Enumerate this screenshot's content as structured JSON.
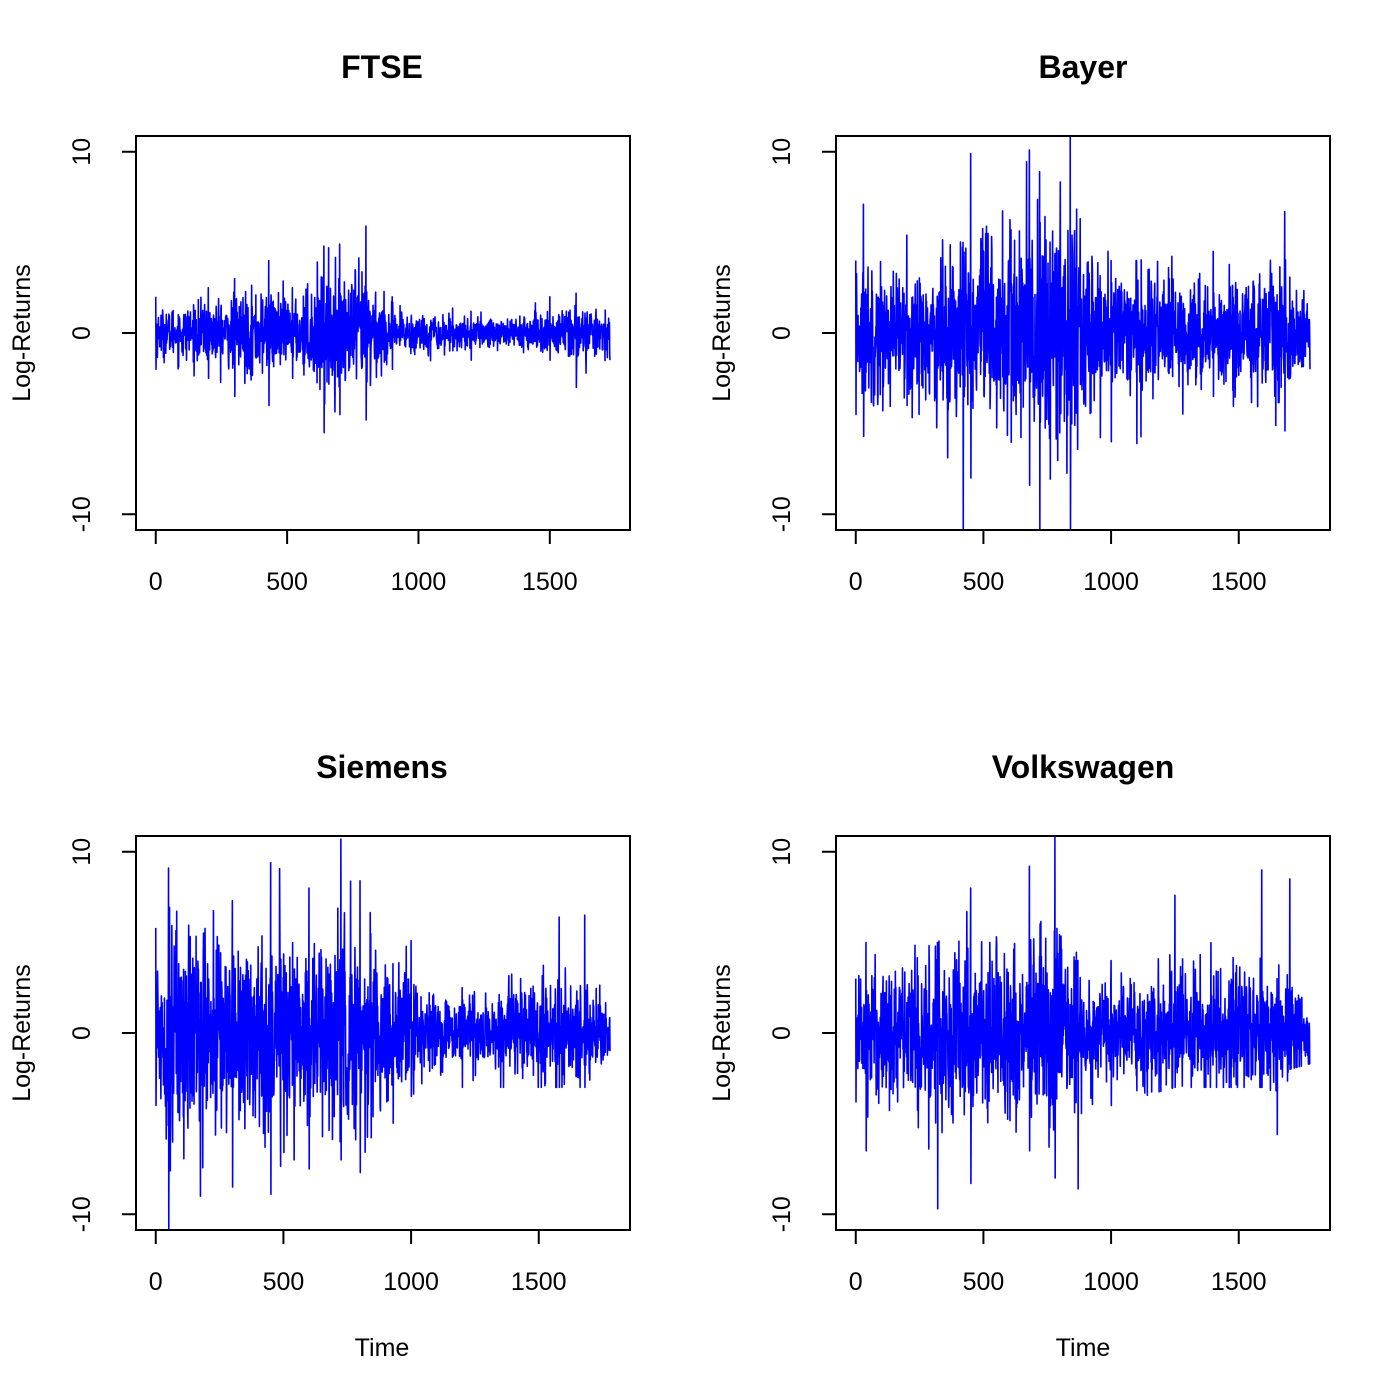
{
  "figure": {
    "ylabel": "Log-Returns",
    "xlabel": "Time"
  },
  "colors": {
    "line": "#0000ff",
    "axis": "#000000",
    "background": "#ffffff"
  },
  "chart_data": [
    {
      "type": "line",
      "title": "FTSE",
      "xlabel": "",
      "ylabel": "Log-Returns",
      "xlim": [
        0,
        1730
      ],
      "ylim": [
        -10,
        10
      ],
      "xticks": [
        "0",
        "500",
        "1000",
        "1500"
      ],
      "yticks": [
        "-10",
        "0",
        "10"
      ],
      "n": 1730,
      "series": [
        {
          "color": "#0000ff",
          "envelope": [
            {
              "x": 0,
              "low": -2.0,
              "high": 2.0
            },
            {
              "x": 200,
              "low": -2.5,
              "high": 2.5
            },
            {
              "x": 300,
              "low": -3.5,
              "high": 3.0
            },
            {
              "x": 430,
              "low": -4.0,
              "high": 4.0
            },
            {
              "x": 520,
              "low": -2.5,
              "high": 2.5
            },
            {
              "x": 640,
              "low": -5.5,
              "high": 4.8
            },
            {
              "x": 700,
              "low": -4.5,
              "high": 4.9
            },
            {
              "x": 800,
              "low": -4.8,
              "high": 5.9
            },
            {
              "x": 900,
              "low": -2.0,
              "high": 2.0
            },
            {
              "x": 1200,
              "low": -1.5,
              "high": 1.2
            },
            {
              "x": 1500,
              "low": -1.5,
              "high": 2.0
            },
            {
              "x": 1600,
              "low": -3.0,
              "high": 2.2
            },
            {
              "x": 1730,
              "low": -1.5,
              "high": 1.2
            }
          ]
        }
      ]
    },
    {
      "type": "line",
      "title": "Bayer",
      "xlabel": "",
      "ylabel": "Log-Returns",
      "xlim": [
        0,
        1780
      ],
      "ylim": [
        -10,
        10
      ],
      "xticks": [
        "0",
        "500",
        "1000",
        "1500"
      ],
      "yticks": [
        "-10",
        "0",
        "10"
      ],
      "n": 1780,
      "series": [
        {
          "color": "#0000ff",
          "envelope": [
            {
              "x": 0,
              "low": -4.5,
              "high": 4.0
            },
            {
              "x": 30,
              "low": -5.7,
              "high": 7.1
            },
            {
              "x": 200,
              "low": -4.0,
              "high": 5.4
            },
            {
              "x": 420,
              "low": -11.0,
              "high": 5.0
            },
            {
              "x": 450,
              "low": -8.0,
              "high": 9.9
            },
            {
              "x": 680,
              "low": -8.4,
              "high": 10.1
            },
            {
              "x": 720,
              "low": -11.0,
              "high": 8.9
            },
            {
              "x": 840,
              "low": -11.0,
              "high": 10.8
            },
            {
              "x": 1000,
              "low": -6.0,
              "high": 4.0
            },
            {
              "x": 1100,
              "low": -6.1,
              "high": 4.0
            },
            {
              "x": 1400,
              "low": -3.5,
              "high": 4.5
            },
            {
              "x": 1680,
              "low": -5.4,
              "high": 6.7
            },
            {
              "x": 1780,
              "low": -2.0,
              "high": 1.5
            }
          ]
        }
      ]
    },
    {
      "type": "line",
      "title": "Siemens",
      "xlabel": "Time",
      "ylabel": "Log-Returns",
      "xlim": [
        0,
        1780
      ],
      "ylim": [
        -10,
        10
      ],
      "xticks": [
        "0",
        "500",
        "1000",
        "1500"
      ],
      "yticks": [
        "-10",
        "0",
        "10"
      ],
      "n": 1780,
      "series": [
        {
          "color": "#0000ff",
          "envelope": [
            {
              "x": 0,
              "low": -4.0,
              "high": 5.8
            },
            {
              "x": 50,
              "low": -10.8,
              "high": 9.1
            },
            {
              "x": 300,
              "low": -8.5,
              "high": 7.3
            },
            {
              "x": 450,
              "low": -8.9,
              "high": 9.4
            },
            {
              "x": 600,
              "low": -7.5,
              "high": 8.0
            },
            {
              "x": 725,
              "low": -7.0,
              "high": 10.7
            },
            {
              "x": 800,
              "low": -7.7,
              "high": 8.4
            },
            {
              "x": 1000,
              "low": -3.5,
              "high": 5.1
            },
            {
              "x": 1200,
              "low": -3.0,
              "high": 2.5
            },
            {
              "x": 1580,
              "low": -3.0,
              "high": 6.4
            },
            {
              "x": 1680,
              "low": -3.0,
              "high": 6.5
            },
            {
              "x": 1780,
              "low": -1.0,
              "high": 2.6
            }
          ]
        }
      ]
    },
    {
      "type": "line",
      "title": "Volkswagen",
      "xlabel": "Time",
      "ylabel": "Log-Returns",
      "xlim": [
        0,
        1780
      ],
      "ylim": [
        -10,
        10
      ],
      "xticks": [
        "0",
        "500",
        "1000",
        "1500"
      ],
      "yticks": [
        "-10",
        "0",
        "10"
      ],
      "n": 1780,
      "series": [
        {
          "color": "#0000ff",
          "envelope": [
            {
              "x": 0,
              "low": -3.8,
              "high": 3.0
            },
            {
              "x": 40,
              "low": -6.5,
              "high": 5.0
            },
            {
              "x": 320,
              "low": -9.7,
              "high": 5.0
            },
            {
              "x": 450,
              "low": -8.3,
              "high": 8.0
            },
            {
              "x": 680,
              "low": -6.5,
              "high": 9.2
            },
            {
              "x": 780,
              "low": -8.0,
              "high": 10.8
            },
            {
              "x": 870,
              "low": -8.6,
              "high": 4.0
            },
            {
              "x": 1000,
              "low": -4.0,
              "high": 4.0
            },
            {
              "x": 1250,
              "low": -3.0,
              "high": 7.6
            },
            {
              "x": 1590,
              "low": -3.0,
              "high": 9.0
            },
            {
              "x": 1650,
              "low": -5.6,
              "high": 3.0
            },
            {
              "x": 1700,
              "low": -2.0,
              "high": 8.5
            },
            {
              "x": 1780,
              "low": -1.7,
              "high": 3.6
            }
          ]
        }
      ]
    }
  ]
}
